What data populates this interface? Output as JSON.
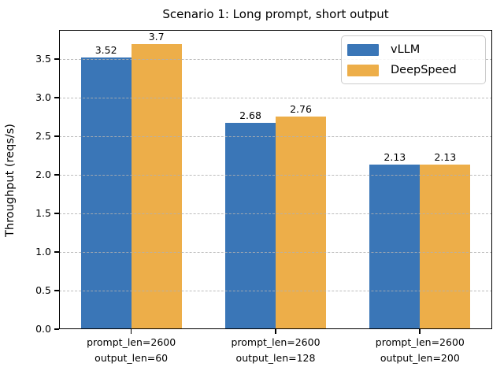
{
  "chart_data": {
    "type": "bar",
    "title": "Scenario 1: Long prompt, short output",
    "xlabel": "",
    "ylabel": "Throughput (reqs/s)",
    "categories": [
      [
        "prompt_len=2600",
        "output_len=60"
      ],
      [
        "prompt_len=2600",
        "output_len=128"
      ],
      [
        "prompt_len=2600",
        "output_len=200"
      ]
    ],
    "series": [
      {
        "name": "vLLM",
        "color": "#3a76b7",
        "values": [
          3.52,
          2.68,
          2.13
        ],
        "value_labels": [
          "3.52",
          "2.68",
          "2.13"
        ]
      },
      {
        "name": "DeepSpeed",
        "color": "#edae49",
        "values": [
          3.7,
          2.76,
          2.13
        ],
        "value_labels": [
          "3.7",
          "2.76",
          "2.13"
        ]
      }
    ],
    "yticks": [
      "0.0",
      "0.5",
      "1.0",
      "1.5",
      "2.0",
      "2.5",
      "3.0",
      "3.5"
    ],
    "ylim": [
      0,
      3.88
    ],
    "grid": "horizontal dashed, drawn above bars",
    "legend_position": "upper right",
    "bar_width_units": 0.35
  }
}
